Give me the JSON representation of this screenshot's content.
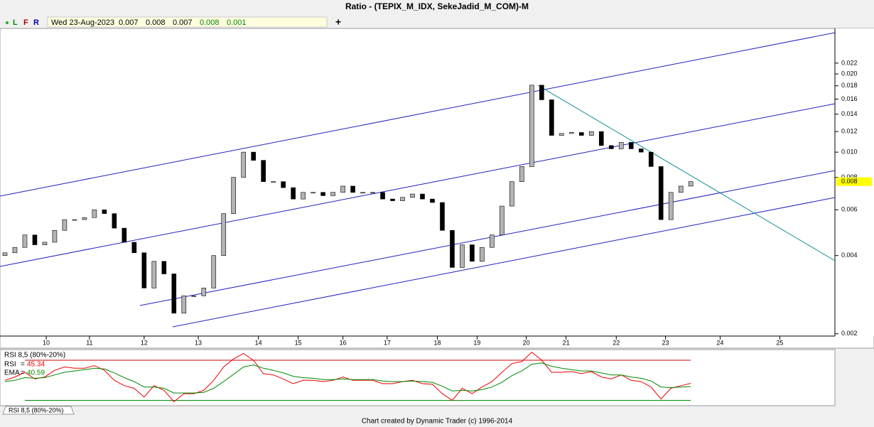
{
  "toolbar": {
    "buttons": [
      "L",
      "F",
      "R"
    ],
    "status": {
      "date": "Wed 23-Aug-2023",
      "open": "0.007",
      "high": "0.008",
      "low": "0.007",
      "close": "0.008",
      "change": "0.001"
    }
  },
  "footer": {
    "credit": "Chart created by Dynamic Trader  (c) 1996-2014"
  },
  "chart_data": [
    {
      "type": "candlestick",
      "title": "Ratio - (TEPIX_M_IDX, SekeJadid_M_COM)-M",
      "scale": "log",
      "up_color": "#b4b4b4",
      "down_color": "#000000",
      "last_label": "0.008",
      "last_label_color": "#ffff00",
      "xlim": [
        0,
        168
      ],
      "ylim": [
        0.00196,
        0.029
      ],
      "xticks": [
        {
          "value": 9.3,
          "label": "10"
        },
        {
          "value": 18,
          "label": "11"
        },
        {
          "value": 29,
          "label": "12"
        },
        {
          "value": 39.9,
          "label": "13"
        },
        {
          "value": 52,
          "label": "14"
        },
        {
          "value": 60,
          "label": "15"
        },
        {
          "value": 69,
          "label": "16"
        },
        {
          "value": 77.9,
          "label": "17"
        },
        {
          "value": 88,
          "label": "18"
        },
        {
          "value": 96,
          "label": "19"
        },
        {
          "value": 105.9,
          "label": "20"
        },
        {
          "value": 113.9,
          "label": "21"
        },
        {
          "value": 124,
          "label": "22"
        },
        {
          "value": 133.9,
          "label": "23"
        },
        {
          "value": 144.9,
          "label": "24"
        },
        {
          "value": 156.9,
          "label": "25"
        }
      ],
      "yticks": [
        0.002,
        0.004,
        0.006,
        0.008,
        {
          "value": 0.01,
          "label": "0.010"
        },
        0.012,
        0.014,
        0.016,
        0.018,
        {
          "value": 0.02,
          "label": "0.020"
        },
        0.022
      ],
      "x": [
        1,
        3,
        5,
        7,
        9,
        11,
        13,
        15,
        17,
        19,
        21,
        23,
        25,
        27,
        29,
        31,
        33,
        35,
        37,
        39,
        41,
        43,
        45,
        47,
        49,
        51,
        53,
        55,
        57,
        59,
        61,
        63,
        65,
        67,
        69,
        71,
        73,
        75,
        77,
        79,
        81,
        83,
        85,
        87,
        89,
        91,
        93,
        95,
        97,
        99,
        101,
        103,
        105,
        107,
        109,
        111,
        113,
        115,
        117,
        119,
        121,
        123,
        125,
        127,
        129,
        131,
        133,
        135,
        137,
        139
      ],
      "open": [
        0.004,
        0.0041,
        0.0043,
        0.0048,
        0.0044,
        0.0045,
        0.005,
        0.0055,
        0.0055,
        0.0056,
        0.006,
        0.0058,
        0.0051,
        0.0045,
        0.0041,
        0.003,
        0.0038,
        0.0034,
        0.0024,
        0.0028,
        0.0028,
        0.003,
        0.004,
        0.0058,
        0.008,
        0.01,
        0.0093,
        0.0077,
        0.0077,
        0.0073,
        0.0066,
        0.007,
        0.007,
        0.0068,
        0.007,
        0.0074,
        0.007,
        0.007,
        0.007,
        0.0066,
        0.0065,
        0.0067,
        0.0069,
        0.0066,
        0.0064,
        0.005,
        0.0036,
        0.0044,
        0.0038,
        0.0043,
        0.0048,
        0.0062,
        0.0077,
        0.0088,
        0.0181,
        0.0159,
        0.0116,
        0.0118,
        0.0119,
        0.0116,
        0.012,
        0.0106,
        0.0103,
        0.0109,
        0.0103,
        0.01,
        0.0088,
        0.0055,
        0.007,
        0.0074
      ],
      "close": [
        0.0041,
        0.0043,
        0.0048,
        0.0044,
        0.0045,
        0.005,
        0.0055,
        0.0055,
        0.0056,
        0.006,
        0.0058,
        0.0051,
        0.0045,
        0.0041,
        0.003,
        0.0038,
        0.0034,
        0.0024,
        0.0028,
        0.0028,
        0.003,
        0.004,
        0.0058,
        0.008,
        0.01,
        0.0093,
        0.0077,
        0.0077,
        0.0073,
        0.0066,
        0.007,
        0.007,
        0.0068,
        0.007,
        0.0074,
        0.007,
        0.007,
        0.007,
        0.0066,
        0.0065,
        0.0067,
        0.0069,
        0.0066,
        0.0064,
        0.005,
        0.0036,
        0.0044,
        0.0038,
        0.0043,
        0.0048,
        0.0062,
        0.0077,
        0.0088,
        0.0181,
        0.0159,
        0.0116,
        0.0118,
        0.0119,
        0.0116,
        0.012,
        0.0106,
        0.0103,
        0.0109,
        0.0103,
        0.01,
        0.0088,
        0.0055,
        0.007,
        0.0074,
        0.0077
      ]
    },
    {
      "type": "line",
      "title": "RSI 8,5 (80%-20%)",
      "legend_separator": "=",
      "ylim": [
        12,
        96
      ],
      "levels": [
        80,
        20
      ],
      "level_color": "#cc0000",
      "series": [
        {
          "name": "RSI",
          "color": "#ee0000",
          "values": [
            50,
            55,
            62,
            52,
            55,
            65,
            70,
            68,
            68,
            72,
            65,
            50,
            42,
            38,
            25,
            42,
            35,
            18,
            30,
            30,
            35,
            50,
            70,
            82,
            90,
            80,
            60,
            58,
            52,
            45,
            50,
            50,
            48,
            50,
            55,
            50,
            50,
            50,
            45,
            45,
            48,
            50,
            45,
            44,
            30,
            20,
            38,
            30,
            40,
            48,
            62,
            75,
            78,
            92,
            80,
            62,
            62,
            63,
            60,
            63,
            55,
            52,
            58,
            50,
            48,
            40,
            22,
            38,
            42,
            45.34
          ]
        },
        {
          "name": "EMA",
          "color": "#008800",
          "values": [
            48,
            50,
            54,
            53,
            54,
            58,
            62,
            64,
            66,
            68,
            67,
            61,
            54,
            48,
            40,
            40,
            38,
            31,
            31,
            31,
            32,
            38,
            48,
            59,
            70,
            73,
            68,
            65,
            61,
            56,
            54,
            53,
            51,
            51,
            52,
            51,
            51,
            51,
            49,
            48,
            48,
            49,
            48,
            47,
            41,
            34,
            35,
            34,
            36,
            40,
            47,
            57,
            64,
            74,
            76,
            71,
            68,
            66,
            64,
            64,
            61,
            58,
            58,
            55,
            53,
            49,
            40,
            39,
            40,
            40.59
          ]
        }
      ]
    }
  ]
}
